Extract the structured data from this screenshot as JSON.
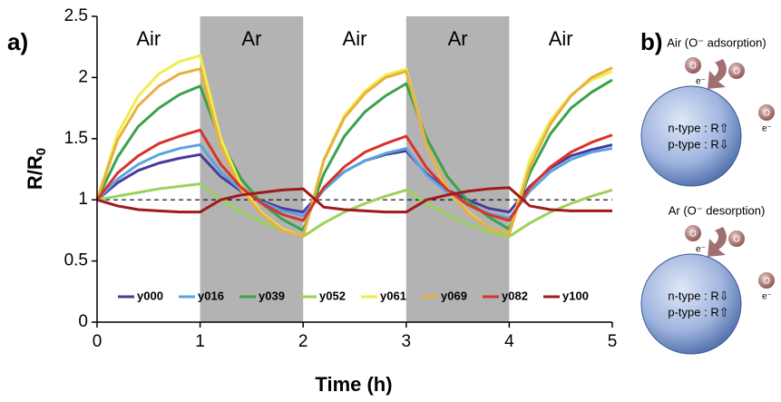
{
  "chart_data": {
    "type": "line",
    "panel_label": "a)",
    "xlabel": "Time (h)",
    "ylabel": {
      "main": "R/R",
      "sub": "0"
    },
    "x": [
      0,
      0.2,
      0.4,
      0.6,
      0.8,
      1,
      1.2,
      1.4,
      1.6,
      1.8,
      2,
      2.2,
      2.4,
      2.6,
      2.8,
      3,
      3.2,
      3.4,
      3.6,
      3.8,
      4,
      4.2,
      4.4,
      4.6,
      4.8,
      5
    ],
    "series": [
      {
        "name": "y000",
        "color": "#4b3a9c",
        "values": [
          1,
          1.14,
          1.24,
          1.3,
          1.34,
          1.37,
          1.19,
          1.07,
          0.99,
          0.93,
          0.9,
          1.09,
          1.23,
          1.32,
          1.37,
          1.4,
          1.21,
          1.08,
          1.0,
          0.93,
          0.9,
          1.11,
          1.26,
          1.36,
          1.41,
          1.45
        ]
      },
      {
        "name": "y016",
        "color": "#5ba3e0",
        "values": [
          1,
          1.17,
          1.29,
          1.37,
          1.42,
          1.45,
          1.23,
          1.08,
          0.98,
          0.91,
          0.87,
          1.08,
          1.23,
          1.32,
          1.38,
          1.42,
          1.2,
          1.06,
          0.96,
          0.89,
          0.85,
          1.07,
          1.23,
          1.33,
          1.39,
          1.42
        ]
      },
      {
        "name": "y039",
        "color": "#3aa24a",
        "values": [
          1,
          1.35,
          1.6,
          1.75,
          1.86,
          1.93,
          1.48,
          1.17,
          0.97,
          0.84,
          0.75,
          1.21,
          1.52,
          1.72,
          1.85,
          1.95,
          1.5,
          1.19,
          0.99,
          0.86,
          0.76,
          1.22,
          1.54,
          1.75,
          1.88,
          1.98
        ]
      },
      {
        "name": "y052",
        "color": "#9bd25a",
        "values": [
          1,
          1.03,
          1.06,
          1.09,
          1.11,
          1.13,
          1.0,
          0.9,
          0.82,
          0.75,
          0.7,
          0.81,
          0.9,
          0.97,
          1.03,
          1.08,
          0.97,
          0.88,
          0.8,
          0.74,
          0.7,
          0.81,
          0.9,
          0.97,
          1.03,
          1.08
        ]
      },
      {
        "name": "y061",
        "color": "#f0ee48",
        "values": [
          1,
          1.54,
          1.85,
          2.03,
          2.13,
          2.18,
          1.5,
          1.11,
          0.89,
          0.76,
          0.7,
          1.33,
          1.69,
          1.89,
          2.02,
          2.07,
          1.44,
          1.08,
          0.9,
          0.77,
          0.72,
          1.33,
          1.65,
          1.86,
          1.98,
          2.05
        ]
      },
      {
        "name": "y069",
        "color": "#e8b040",
        "values": [
          1,
          1.49,
          1.77,
          1.93,
          2.03,
          2.07,
          1.44,
          1.08,
          0.88,
          0.75,
          0.7,
          1.32,
          1.67,
          1.87,
          2.0,
          2.05,
          1.44,
          1.09,
          0.89,
          0.77,
          0.72,
          1.27,
          1.62,
          1.85,
          2.0,
          2.08
        ]
      },
      {
        "name": "y082",
        "color": "#d9332b",
        "values": [
          1,
          1.22,
          1.36,
          1.46,
          1.52,
          1.57,
          1.29,
          1.1,
          0.97,
          0.88,
          0.83,
          1.1,
          1.27,
          1.39,
          1.46,
          1.52,
          1.26,
          1.08,
          0.96,
          0.88,
          0.83,
          1.1,
          1.27,
          1.39,
          1.47,
          1.53
        ]
      },
      {
        "name": "y100",
        "color": "#a0191c",
        "values": [
          1,
          0.95,
          0.92,
          0.91,
          0.9,
          0.9,
          1.0,
          1.04,
          1.06,
          1.08,
          1.09,
          0.94,
          0.92,
          0.91,
          0.9,
          0.9,
          1.0,
          1.04,
          1.07,
          1.09,
          1.1,
          0.95,
          0.92,
          0.91,
          0.91,
          0.91
        ]
      }
    ],
    "xlim": [
      0,
      5
    ],
    "xticks": [
      0,
      1,
      2,
      3,
      4,
      5
    ],
    "ylim": [
      0,
      2.5
    ],
    "yticks": [
      0,
      0.5,
      1,
      1.5,
      2,
      2.5
    ],
    "reference_line": 1,
    "shaded": [
      [
        1,
        2
      ],
      [
        3,
        4
      ]
    ],
    "shade_color": "#b3b3b3",
    "regions": [
      "Air",
      "Ar",
      "Air",
      "Ar",
      "Air"
    ],
    "legend": "bottom"
  },
  "diagram": {
    "label": "b)",
    "electron": "e⁻",
    "atom": "O",
    "panels": [
      {
        "title": "Air (O⁻ adsorption)",
        "lines": [
          "n-type : R⇧",
          "p-type : R⇩"
        ]
      },
      {
        "title": "Ar (O⁻ desorption)",
        "lines": [
          "n-type : R⇩",
          "p-type : R⇧"
        ]
      }
    ]
  }
}
